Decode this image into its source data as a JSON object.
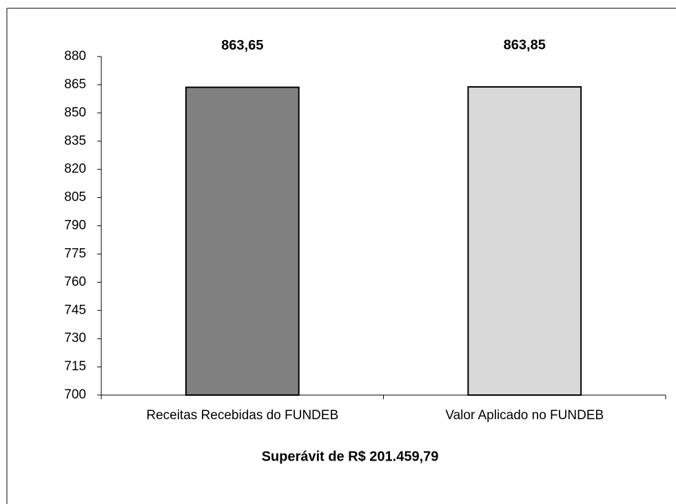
{
  "chart_data": {
    "type": "bar",
    "categories": [
      "Receitas Recebidas do FUNDEB",
      "Valor Aplicado no FUNDEB"
    ],
    "values": [
      863.65,
      863.85
    ],
    "value_labels": [
      "863,65",
      "863,85"
    ],
    "colors": [
      "#808080",
      "#d9d9d9"
    ],
    "xlabel": "Superávit de R$ 201.459,79",
    "ylim": [
      700,
      880
    ],
    "yticks": [
      700,
      715,
      730,
      745,
      760,
      775,
      790,
      805,
      820,
      835,
      850,
      865,
      880
    ],
    "grid": false
  }
}
